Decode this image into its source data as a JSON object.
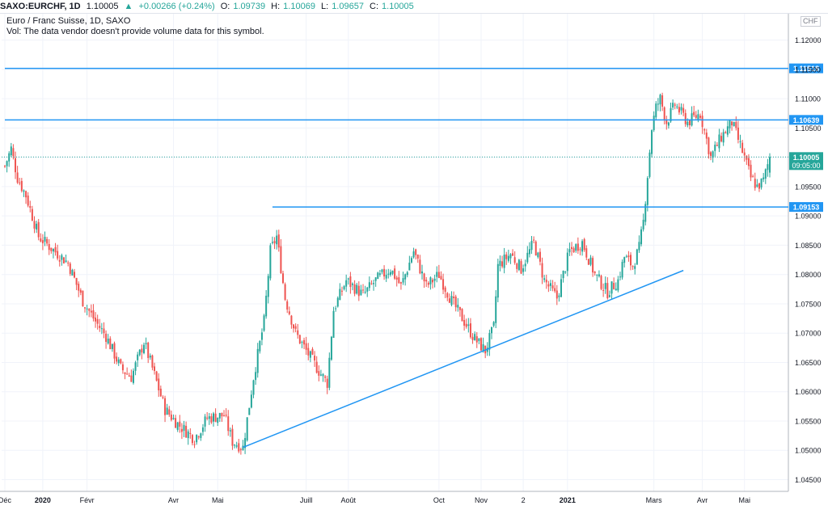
{
  "header": {
    "symbol": "SAXO:EURCHF, 1D",
    "last": "1.10005",
    "arrow": "▲",
    "change": "+0.00266 (+0.24%)",
    "o_label": "O:",
    "o_value": "1.09739",
    "h_label": "H:",
    "h_value": "1.10069",
    "l_label": "L:",
    "l_value": "1.09657",
    "c_label": "C:",
    "c_value": "1.10005"
  },
  "legend": {
    "title": "Euro / Franc Suisse, 1D, SAXO",
    "volume_note": "Vol: The data vendor doesn't provide volume data for this symbol."
  },
  "axis_unit": "CHF",
  "colors": {
    "up": "#26a69a",
    "down": "#ef5350",
    "line": "#2196f3",
    "grid": "#f0f3fa",
    "text": "#131722"
  },
  "chart_data": {
    "type": "candlestick",
    "title": "Euro / Franc Suisse, 1D, SAXO",
    "ylim": [
      1.043,
      1.1245
    ],
    "y_ticks": [
      "1.12000",
      "1.11500",
      "1.11000",
      "1.10500",
      "1.10000",
      "1.09500",
      "1.09000",
      "1.08500",
      "1.08000",
      "1.07500",
      "1.07000",
      "1.06500",
      "1.06000",
      "1.05500",
      "1.05000",
      "1.04500"
    ],
    "x_ticks": [
      {
        "label": "Déc",
        "i": 0
      },
      {
        "label": "2020",
        "i": 18,
        "bold": true
      },
      {
        "label": "Févr",
        "i": 39
      },
      {
        "label": "Avr",
        "i": 80
      },
      {
        "label": "Mai",
        "i": 101
      },
      {
        "label": "Juill",
        "i": 143
      },
      {
        "label": "Août",
        "i": 163
      },
      {
        "label": "Oct",
        "i": 206
      },
      {
        "label": "Nov",
        "i": 226
      },
      {
        "label": "2",
        "i": 246
      },
      {
        "label": "2021",
        "i": 267,
        "bold": true
      },
      {
        "label": "Mars",
        "i": 308
      },
      {
        "label": "Avr",
        "i": 331
      },
      {
        "label": "Mai",
        "i": 351
      }
    ],
    "anchors": [
      [
        0,
        1.0985
      ],
      [
        3,
        1.1015
      ],
      [
        6,
        1.0965
      ],
      [
        10,
        1.0935
      ],
      [
        16,
        1.0865
      ],
      [
        22,
        1.0845
      ],
      [
        30,
        1.082
      ],
      [
        37,
        1.0755
      ],
      [
        43,
        1.072
      ],
      [
        48,
        1.0695
      ],
      [
        55,
        1.064
      ],
      [
        60,
        1.0625
      ],
      [
        66,
        1.0685
      ],
      [
        70,
        1.064
      ],
      [
        76,
        1.057
      ],
      [
        82,
        1.0545
      ],
      [
        90,
        1.052
      ],
      [
        96,
        1.0555
      ],
      [
        104,
        1.056
      ],
      [
        108,
        1.0515
      ],
      [
        113,
        1.0505
      ],
      [
        118,
        1.0625
      ],
      [
        123,
        1.072
      ],
      [
        126,
        1.084
      ],
      [
        129,
        1.0865
      ],
      [
        133,
        1.076
      ],
      [
        138,
        1.07
      ],
      [
        143,
        1.067
      ],
      [
        150,
        1.063
      ],
      [
        153,
        1.0615
      ],
      [
        156,
        1.074
      ],
      [
        162,
        1.079
      ],
      [
        170,
        1.0765
      ],
      [
        176,
        1.079
      ],
      [
        183,
        1.081
      ],
      [
        188,
        1.078
      ],
      [
        194,
        1.084
      ],
      [
        200,
        1.078
      ],
      [
        206,
        1.08
      ],
      [
        212,
        1.0755
      ],
      [
        218,
        1.072
      ],
      [
        223,
        1.069
      ],
      [
        228,
        1.067
      ],
      [
        232,
        1.071
      ],
      [
        234,
        1.0815
      ],
      [
        240,
        1.0835
      ],
      [
        245,
        1.081
      ],
      [
        251,
        1.0855
      ],
      [
        256,
        1.079
      ],
      [
        262,
        1.076
      ],
      [
        268,
        1.084
      ],
      [
        274,
        1.0855
      ],
      [
        280,
        1.08
      ],
      [
        286,
        1.077
      ],
      [
        291,
        1.079
      ],
      [
        294,
        1.083
      ],
      [
        298,
        1.0815
      ],
      [
        301,
        1.0845
      ],
      [
        303,
        1.089
      ],
      [
        305,
        1.097
      ],
      [
        307,
        1.105
      ],
      [
        309,
        1.1085
      ],
      [
        311,
        1.11
      ],
      [
        314,
        1.106
      ],
      [
        318,
        1.109
      ],
      [
        324,
        1.106
      ],
      [
        330,
        1.1075
      ],
      [
        335,
        1.1
      ],
      [
        340,
        1.1035
      ],
      [
        345,
        1.106
      ],
      [
        350,
        1.101
      ],
      [
        354,
        1.0965
      ],
      [
        357,
        1.095
      ],
      [
        360,
        1.096
      ],
      [
        363,
        1.10005
      ]
    ],
    "candle_count": 364,
    "horizontal_lines": [
      {
        "price": 1.11518,
        "label": "1.11518",
        "start_i": 0
      },
      {
        "price": 1.10639,
        "label": "1.10639",
        "start_i": 0
      },
      {
        "price": 1.09153,
        "label": "1.09153",
        "start_i": 127
      }
    ],
    "last_price": {
      "price": 1.10005,
      "label": "1.10005",
      "countdown": "09:05:00"
    },
    "trend_line": {
      "from": {
        "i": 113,
        "price": 1.0505
      },
      "to": {
        "i": 322,
        "price": 1.0807
      }
    }
  }
}
